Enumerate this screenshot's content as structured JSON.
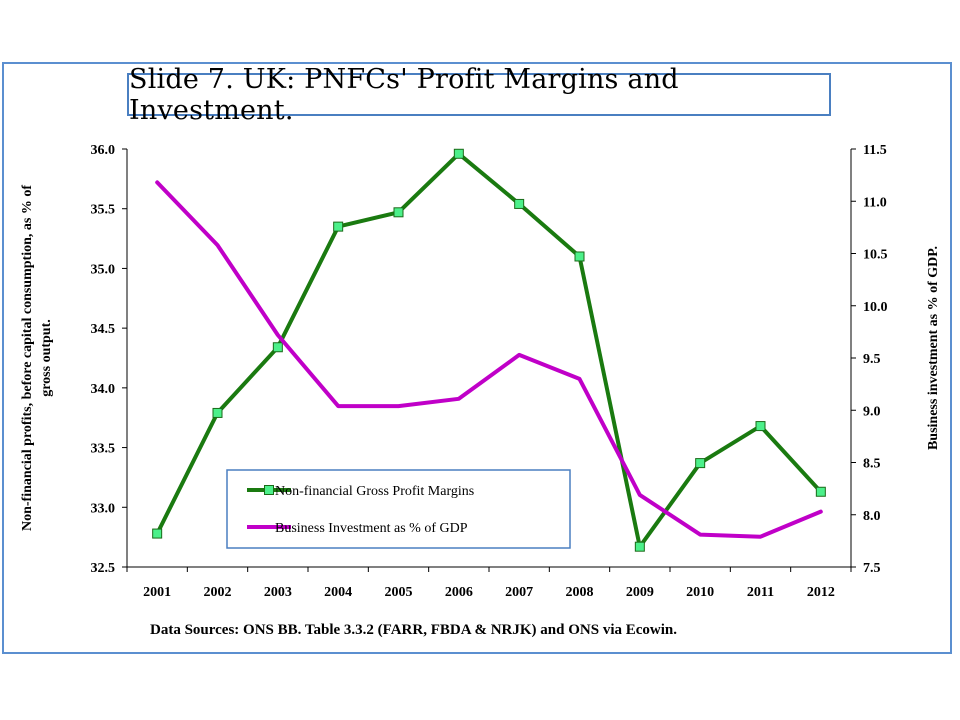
{
  "title": "Slide 7. UK: PNFCs' Profit Margins and Investment.",
  "source_note": "Data Sources: ONS BB. Table 3.3.2 (FARR, FBDA & NRJK) and ONS via Ecowin.",
  "colors": {
    "frame": "#5b8fd0",
    "margins": "#1a7a10",
    "marker": "#4cf08a",
    "investment": "#c000c8",
    "legend_border": "#4a7fc1"
  },
  "chart_data": {
    "type": "line",
    "categories": [
      "2001",
      "2002",
      "2003",
      "2004",
      "2005",
      "2006",
      "2007",
      "2008",
      "2009",
      "2010",
      "2011",
      "2012"
    ],
    "ylabel_left": [
      "Non-financial profits, before capital consumption, as % of",
      "gross output."
    ],
    "ylabel_right": "Business investment as % of GDP.",
    "ylim_left": [
      32.5,
      36.0
    ],
    "ylim_right": [
      7.5,
      11.5
    ],
    "yticks_left": [
      "32.5",
      "33.0",
      "33.5",
      "34.0",
      "34.5",
      "35.0",
      "35.5",
      "36.0"
    ],
    "yticks_right": [
      "7.5",
      "8.0",
      "8.5",
      "9.0",
      "9.5",
      "10.0",
      "10.5",
      "11.0",
      "11.5"
    ],
    "grid": false,
    "legend_position": "bottom-left",
    "series": [
      {
        "name": "Non-financial Gross Profit Margins",
        "axis": "left",
        "values": [
          32.78,
          33.79,
          34.34,
          35.35,
          35.47,
          35.96,
          35.54,
          35.1,
          32.67,
          33.37,
          33.68,
          33.13
        ]
      },
      {
        "name": "Business Investment as % of GDP",
        "axis": "right",
        "values": [
          11.18,
          10.58,
          9.72,
          9.04,
          9.04,
          9.11,
          9.53,
          9.3,
          8.19,
          7.81,
          7.79,
          8.03
        ]
      }
    ]
  }
}
